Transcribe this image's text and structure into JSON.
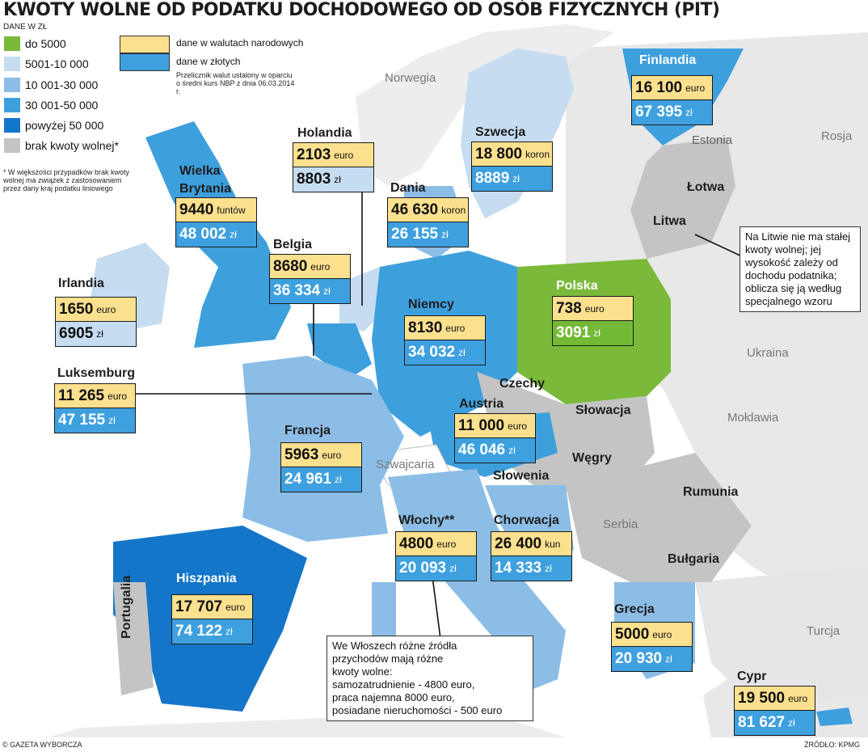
{
  "title": "KWOTY WOLNE OD PODATKU DOCHODOWEGO OD OSÓB FIZYCZNYCH (PIT)",
  "unit_label": "DANE W ZŁ",
  "legend": [
    {
      "label": "do 5000",
      "color": "#7ab93a"
    },
    {
      "label": "5001-10 000",
      "color": "#c6dcf1"
    },
    {
      "label": "10 001-30 000",
      "color": "#8cbde6"
    },
    {
      "label": "30 001-50 000",
      "color": "#3e9fdd"
    },
    {
      "label": "powyżej 50 000",
      "color": "#1476c8"
    },
    {
      "label": "brak kwoty wolnej*",
      "color": "#c4c4c4"
    }
  ],
  "key": {
    "national": "dane w walutach narodowych",
    "pln": "dane w złotych",
    "rate_note": "Przelicznik walut ustalony w oparciu o średni kurs NBP z dnia 06.03.2014 r."
  },
  "footnote": "* W większości przypadków brak kwoty wolnej ma związek z zastosowaniem przez dany kraj podatku liniowego",
  "countries": {
    "finlandia": {
      "name": "Finlandia",
      "national": "16 100",
      "currency": "euro",
      "pln": "67 395",
      "pln_unit": "zł"
    },
    "szwecja": {
      "name": "Szwecja",
      "national": "18 800",
      "currency": "koron",
      "pln": "8889",
      "pln_unit": "zł"
    },
    "holandia": {
      "name": "Holandia",
      "national": "2103",
      "currency": "euro",
      "pln": "8803",
      "pln_unit": "zł"
    },
    "dania": {
      "name": "Dania",
      "national": "46 630",
      "currency": "koron",
      "pln": "26 155",
      "pln_unit": "zł"
    },
    "wielka_brytania": {
      "name": "Wielka Brytania",
      "national": "9440",
      "currency": "funtów",
      "pln": "48 002",
      "pln_unit": "zł"
    },
    "belgia": {
      "name": "Belgia",
      "national": "8680",
      "currency": "euro",
      "pln": "36 334",
      "pln_unit": "zł"
    },
    "irlandia": {
      "name": "Irlandia",
      "national": "1650",
      "currency": "euro",
      "pln": "6905",
      "pln_unit": "zł"
    },
    "niemcy": {
      "name": "Niemcy",
      "national": "8130",
      "currency": "euro",
      "pln": "34 032",
      "pln_unit": "zł"
    },
    "polska": {
      "name": "Polska",
      "national": "738",
      "currency": "euro",
      "pln": "3091",
      "pln_unit": "zł"
    },
    "luksemburg": {
      "name": "Luksemburg",
      "national": "11 265",
      "currency": "euro",
      "pln": "47 155",
      "pln_unit": "zł"
    },
    "austria": {
      "name": "Austria",
      "national": "11 000",
      "currency": "euro",
      "pln": "46 046",
      "pln_unit": "zł"
    },
    "francja": {
      "name": "Francja",
      "national": "5963",
      "currency": "euro",
      "pln": "24 961",
      "pln_unit": "zł"
    },
    "wlochy": {
      "name": "Włochy**",
      "national": "4800",
      "currency": "euro",
      "pln": "20 093",
      "pln_unit": "zł"
    },
    "chorwacja": {
      "name": "Chorwacja",
      "national": "26 400",
      "currency": "kun",
      "pln": "14 333",
      "pln_unit": "zł"
    },
    "hiszpania": {
      "name": "Hiszpania",
      "national": "17 707",
      "currency": "euro",
      "pln": "74 122",
      "pln_unit": "zł"
    },
    "grecja": {
      "name": "Grecja",
      "national": "5000",
      "currency": "euro",
      "pln": "20 930",
      "pln_unit": "zł"
    },
    "cypr": {
      "name": "Cypr",
      "national": "19 500",
      "currency": "euro",
      "pln": "81 627",
      "pln_unit": "zł"
    }
  },
  "no_allowance_countries": [
    "Estonia",
    "Łotwa",
    "Litwa",
    "Czechy",
    "Słowacja",
    "Węgry",
    "Słowenia",
    "Rumunia",
    "Bułgaria",
    "Portugalia"
  ],
  "other_labels": [
    "Norwegia",
    "Rosja",
    "Ukraina",
    "Mołdawia",
    "Serbia",
    "Turcja",
    "Szwajcaria"
  ],
  "lithuania_note": "Na Litwie nie ma stałej kwoty wolnej; jej wysokość zależy od dochodu podatnika; oblicza się ją według specjalnego wzoru",
  "italy_note": {
    "lines": [
      "We Włoszech różne źródła",
      "przychodów mają różne",
      "kwoty wolne:",
      "samozatrudnienie - 4800 euro,",
      "praca najemna 8000 euro,",
      "posiadane nieruchomości - 500 euro"
    ]
  },
  "credit": "© GAZETA WYBORCZA",
  "source": "ŹRÓDŁO: KPMG"
}
